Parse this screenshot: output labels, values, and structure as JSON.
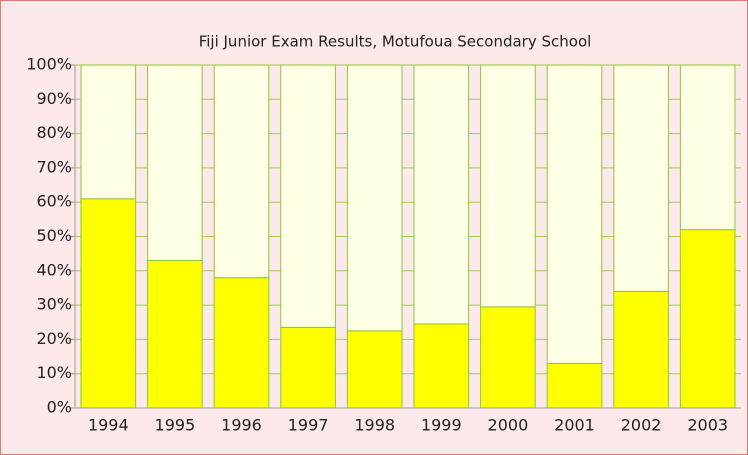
{
  "chart_data": {
    "type": "stacked_bar",
    "title": "Fiji Junior Exam Results, Motufoua Secondary School",
    "categories": [
      "1994",
      "1995",
      "1996",
      "1997",
      "1998",
      "1999",
      "2000",
      "2001",
      "2002",
      "2003"
    ],
    "series": [
      {
        "color": "#ffff00",
        "values": [
          61,
          43,
          38,
          23.5,
          22.5,
          24.5,
          29.5,
          13,
          34,
          52
        ]
      },
      {
        "color": "#ffffe6",
        "values": [
          39,
          57,
          62,
          76.5,
          77.5,
          75.5,
          70.5,
          87,
          66,
          48
        ]
      }
    ],
    "ylim": [
      0,
      100
    ],
    "yticks": [
      {
        "value": 0,
        "label": "0%"
      },
      {
        "value": 10,
        "label": "10%"
      },
      {
        "value": 20,
        "label": "20%"
      },
      {
        "value": 30,
        "label": "30%"
      },
      {
        "value": 40,
        "label": "40%"
      },
      {
        "value": 50,
        "label": "50%"
      },
      {
        "value": 60,
        "label": "60%"
      },
      {
        "value": 70,
        "label": "70%"
      },
      {
        "value": 80,
        "label": "80%"
      },
      {
        "value": 90,
        "label": "90%"
      },
      {
        "value": 100,
        "label": "100%"
      }
    ],
    "grid": true
  }
}
